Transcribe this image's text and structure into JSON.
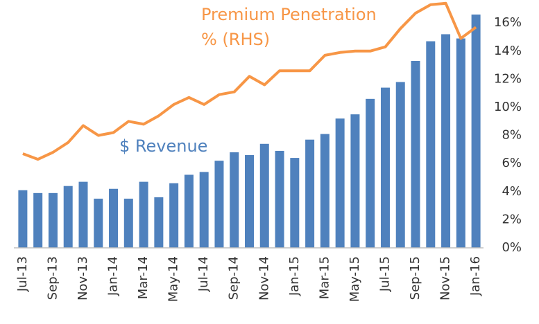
{
  "chart_data": {
    "type": "bar_line",
    "categories": [
      "Jul-13",
      null,
      "Sep-13",
      null,
      "Nov-13",
      null,
      "Jan-14",
      null,
      "Mar-14",
      null,
      "May-14",
      null,
      "Jul-14",
      null,
      "Sep-14",
      null,
      "Nov-14",
      null,
      "Jan-15",
      null,
      "Mar-15",
      null,
      "May-15",
      null,
      "Jul-15",
      null,
      "Sep-15",
      null,
      "Nov-15",
      null,
      "Jan-16"
    ],
    "series": [
      {
        "name": "$ Revenue",
        "type": "bar",
        "color": "#4f81bd",
        "values": [
          4.1,
          3.9,
          3.9,
          4.4,
          4.7,
          3.5,
          4.2,
          3.5,
          4.7,
          3.6,
          4.6,
          5.2,
          5.4,
          6.2,
          6.8,
          6.6,
          7.4,
          6.9,
          6.4,
          7.7,
          8.1,
          9.2,
          9.5,
          10.6,
          11.4,
          11.8,
          13.3,
          14.7,
          15.2,
          14.9,
          16.6
        ]
      },
      {
        "type": "line",
        "color": "#f79646",
        "values": [
          6.7,
          6.3,
          6.8,
          7.5,
          8.7,
          8.0,
          8.2,
          9.0,
          8.8,
          9.4,
          10.2,
          10.7,
          10.2,
          10.9,
          11.1,
          12.2,
          11.6,
          12.6,
          12.6,
          12.6,
          13.7,
          13.9,
          14.0,
          14.0,
          14.3,
          15.6,
          16.7,
          17.3,
          17.4,
          14.9,
          15.7
        ]
      }
    ],
    "annotations": [
      "Premium Penetration",
      "% (RHS)"
    ],
    "ylim": [
      0,
      17.6
    ],
    "yticks": [
      {
        "value": 0,
        "label": "0%"
      },
      {
        "value": 2,
        "label": "2%"
      },
      {
        "value": 4,
        "label": "4%"
      },
      {
        "value": 6,
        "label": "6%"
      },
      {
        "value": 8,
        "label": "8%"
      },
      {
        "value": 10,
        "label": "10%"
      },
      {
        "value": 12,
        "label": "12%"
      },
      {
        "value": 14,
        "label": "14%"
      },
      {
        "value": 16,
        "label": "16%"
      }
    ],
    "yaxis_side": "right",
    "grid": false
  }
}
